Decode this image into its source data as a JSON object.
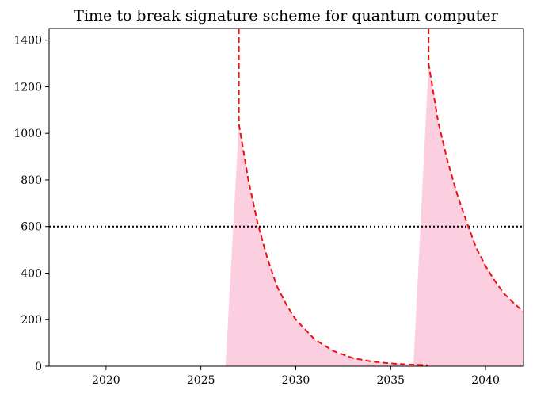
{
  "chart_data": {
    "type": "line",
    "title": "Time to break signature scheme for quantum computer",
    "xlabel": "",
    "ylabel": "",
    "xlim": [
      2017,
      2042
    ],
    "ylim": [
      0,
      1450
    ],
    "xticks": [
      2020,
      2025,
      2030,
      2035,
      2040
    ],
    "yticks": [
      0,
      200,
      400,
      600,
      800,
      1000,
      1200,
      1400
    ],
    "grid": false,
    "legend": "none",
    "colors": {
      "curve": "#ee1111",
      "fill": "#fbcfdf",
      "threshold": "#000000"
    },
    "threshold": {
      "y": 600,
      "style": "dotted"
    },
    "series": [
      {
        "style": "dashed",
        "segments": [
          {
            "x": [
              2027.0,
              2027.0,
              2027.5,
              2028.0,
              2028.5,
              2029.0,
              2029.5,
              2030.0,
              2031.0,
              2032.0,
              2033.0,
              2034.0,
              2035.0,
              2036.0,
              2037.0
            ],
            "y": [
              1450,
              1040,
              800,
              610,
              465,
              345,
              265,
              200,
              115,
              65,
              35,
              20,
              12,
              7,
              4
            ]
          },
          {
            "x": [
              2037.0,
              2037.0,
              2037.5,
              2038.0,
              2038.5,
              2039.0,
              2039.5,
              2040.0,
              2040.5,
              2041.0,
              2041.5,
              2042.0
            ],
            "y": [
              1450,
              1300,
              1050,
              880,
              740,
              620,
              510,
              430,
              365,
              310,
              270,
              235
            ]
          }
        ]
      }
    ],
    "shaded_regions": [
      {
        "x": [
          2026.3,
          2027.0,
          2027.5,
          2028.0,
          2028.5,
          2029.0,
          2029.5,
          2030.0,
          2031.0,
          2032.0,
          2033.0,
          2034.0,
          2035.0,
          2036.0,
          2037.0
        ],
        "y": [
          0,
          1040,
          800,
          610,
          465,
          345,
          265,
          200,
          115,
          65,
          35,
          20,
          12,
          7,
          4
        ]
      },
      {
        "x": [
          2036.2,
          2037.0,
          2037.5,
          2038.0,
          2038.5,
          2039.0,
          2039.5,
          2040.0,
          2040.5,
          2041.0,
          2041.5,
          2042.0
        ],
        "y": [
          0,
          1300,
          1050,
          880,
          740,
          620,
          510,
          430,
          365,
          310,
          270,
          235
        ]
      }
    ]
  }
}
